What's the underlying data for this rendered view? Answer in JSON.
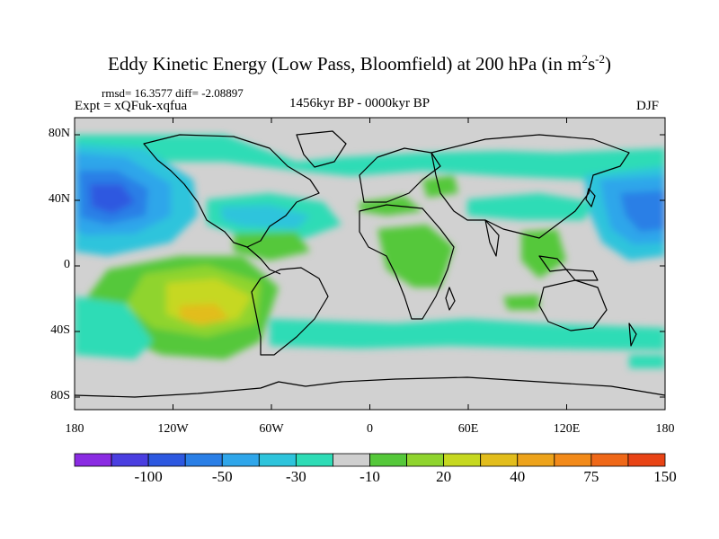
{
  "title": {
    "main": "Eddy Kinetic Energy (Low Pass, Bloomfield) at 200 hPa (in m",
    "sup1": "2",
    "mid": "s",
    "sup2": "-2",
    "end": ")"
  },
  "stats": "rmsd= 16.3577 diff= -2.08897",
  "expt": "Expt = xQFuk-xqfua",
  "period": "1456kyr BP - 0000kyr BP",
  "season": "DJF",
  "axes": {
    "lon_ticks": [
      "180",
      "120W",
      "60W",
      "0",
      "60E",
      "120E",
      "180"
    ],
    "lat_ticks": [
      "80N",
      "40N",
      "0",
      "40S",
      "80S"
    ]
  },
  "colorbar": {
    "labels": [
      "-100",
      "-50",
      "-30",
      "-10",
      "20",
      "40",
      "75",
      "150"
    ],
    "colors": [
      "#8a2be2",
      "#4a3ee0",
      "#2d58e0",
      "#2a7fe6",
      "#2fa6ea",
      "#2ec4dc",
      "#2edcb6",
      "#cfcfcf",
      "#55c83a",
      "#8fd42e",
      "#c6d820",
      "#e2bd1c",
      "#eda31b",
      "#f28a1a",
      "#ef6818",
      "#e84315"
    ]
  },
  "colors": {
    "land_outline": "#000000",
    "zero_fill": "#d1d1d1"
  }
}
